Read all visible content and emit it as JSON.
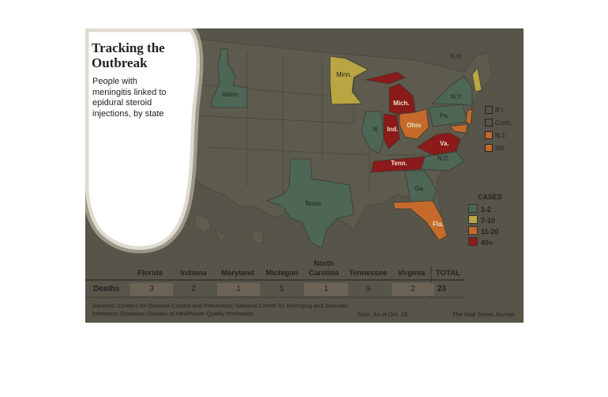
{
  "title": "Tracking the Outbreak",
  "subtitle": "People with meningitis linked to epidural steroid injections, by state",
  "state_labels": {
    "minnesota": "Minn.",
    "idaho": "Idaho",
    "michigan": "Mich.",
    "illinois": "Ill.",
    "indiana": "Ind.",
    "ohio": "Ohio",
    "pennsylvania": "Pa.",
    "new_york": "N.Y.",
    "new_hampshire": "N.H.",
    "virginia": "Va.",
    "tennessee": "Tenn.",
    "north_carolina": "N.C.",
    "georgia": "Ga.",
    "florida": "Fla.",
    "texas": "Texas",
    "rhode_island": "R.I.",
    "connecticut": "Conn.",
    "new_jersey": "N.J.",
    "maryland": "Md."
  },
  "legend": {
    "title": "CASES",
    "items": [
      {
        "label": "1-2",
        "color": "#4d6655"
      },
      {
        "label": "7-10",
        "color": "#b9a541"
      },
      {
        "label": "11-20",
        "color": "#c56a2a"
      },
      {
        "label": "40+",
        "color": "#8b1a1a"
      }
    ]
  },
  "deaths_table": {
    "row_label": "Deaths",
    "columns": [
      {
        "state": "Florida",
        "deaths": "3"
      },
      {
        "state": "Indiana",
        "deaths": "2"
      },
      {
        "state": "Maryland",
        "deaths": "1"
      },
      {
        "state": "Michigan",
        "deaths": "5"
      },
      {
        "state": "North Carolina",
        "deaths": "1"
      },
      {
        "state": "Tennessee",
        "deaths": "9"
      },
      {
        "state": "Virginia",
        "deaths": "2"
      }
    ],
    "total_label": "TOTAL",
    "total_value": "23"
  },
  "sources": "Sources: Centers for Disease Control and Prevention; National Center for Emerging and Zoonotic Infectious Diseases; Division of Healthcare Quality Promotion",
  "note": "Note: As of Oct. 23",
  "credit": "The Wall Street Journal"
}
